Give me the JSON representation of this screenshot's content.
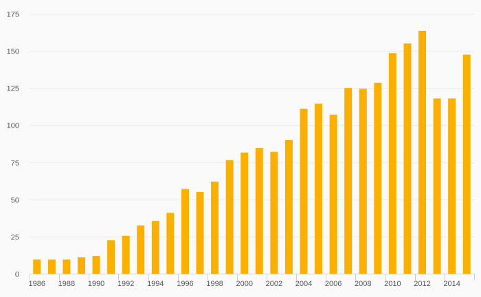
{
  "chart_data": {
    "type": "bar",
    "categories": [
      "1986",
      "1987",
      "1988",
      "1989",
      "1990",
      "1991",
      "1992",
      "1993",
      "1994",
      "1995",
      "1996",
      "1997",
      "1998",
      "1999",
      "2000",
      "2001",
      "2002",
      "2003",
      "2004",
      "2005",
      "2006",
      "2007",
      "2008",
      "2009",
      "2010",
      "2011",
      "2012",
      "2013",
      "2014",
      "2015"
    ],
    "x_tick_labels": [
      "1986",
      "1988",
      "1990",
      "1992",
      "1994",
      "1996",
      "1998",
      "2000",
      "2002",
      "2004",
      "2006",
      "2008",
      "2010",
      "2012",
      "2014"
    ],
    "values": [
      9.5,
      9.5,
      9.5,
      11,
      12,
      22.5,
      25.5,
      32.5,
      35.5,
      41,
      57,
      55,
      62,
      76.5,
      81.5,
      84.5,
      82,
      90,
      111,
      114.5,
      107,
      125,
      124.5,
      128.5,
      148.5,
      155,
      163.5,
      118,
      118,
      147.5
    ],
    "y_ticks": [
      0,
      25,
      50,
      75,
      100,
      125,
      150,
      175
    ],
    "ylim": [
      0,
      175
    ],
    "title": "",
    "xlabel": "",
    "ylabel": "",
    "grid": true,
    "bar_color": "#fbb000"
  }
}
